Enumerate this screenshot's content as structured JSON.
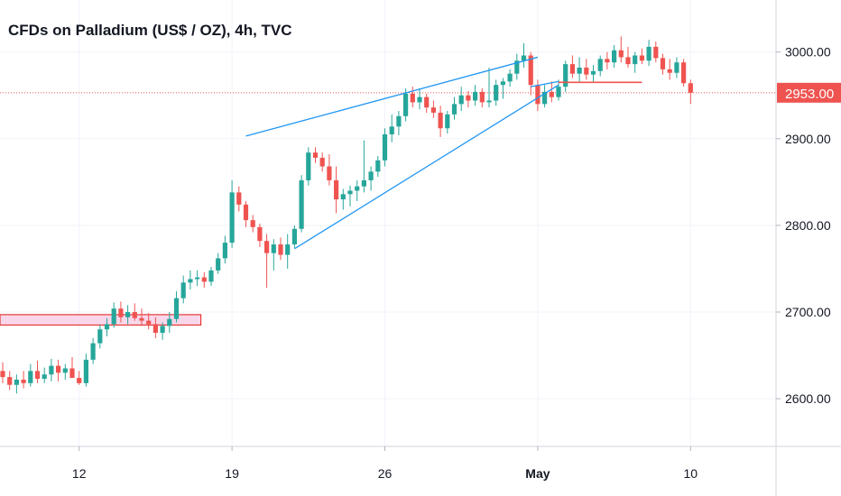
{
  "chart_data": {
    "type": "candlestick",
    "title": "CFDs on Palladium (US$ / OZ), 4h, TVC",
    "timeframe": "4h",
    "ylim": [
      2545,
      3060
    ],
    "y_ticks": [
      2600,
      2700,
      2800,
      2900,
      3000
    ],
    "y_tick_labels": [
      "2600.00",
      "2700.00",
      "2800.00",
      "2900.00",
      "3000.00"
    ],
    "x_ticks": [
      {
        "label": "12",
        "bar": 11
      },
      {
        "label": "19",
        "bar": 33
      },
      {
        "label": "26",
        "bar": 55
      },
      {
        "label": "May",
        "bar": 77,
        "bold": true
      },
      {
        "label": "10",
        "bar": 99
      }
    ],
    "last_price": 2953,
    "last_price_label": "2953.00",
    "grid": true,
    "colors": {
      "up": "#26a69a",
      "down": "#ef5350",
      "trendline": "#2196f3",
      "zone_fill": "#f8d7ea",
      "zone_border": "#e53935",
      "grid": "#f0f3fa",
      "axis_text": "#131722",
      "price_label_bg": "#ef5350"
    },
    "candles": [
      [
        2632,
        2642,
        2618,
        2625
      ],
      [
        2625,
        2632,
        2610,
        2616
      ],
      [
        2616,
        2628,
        2606,
        2622
      ],
      [
        2622,
        2632,
        2612,
        2618
      ],
      [
        2618,
        2640,
        2614,
        2632
      ],
      [
        2632,
        2644,
        2618,
        2623
      ],
      [
        2623,
        2636,
        2618,
        2628
      ],
      [
        2628,
        2646,
        2620,
        2638
      ],
      [
        2638,
        2645,
        2620,
        2630
      ],
      [
        2630,
        2640,
        2622,
        2635
      ],
      [
        2635,
        2648,
        2626,
        2624
      ],
      [
        2624,
        2632,
        2616,
        2618
      ],
      [
        2618,
        2652,
        2614,
        2645
      ],
      [
        2645,
        2670,
        2640,
        2664
      ],
      [
        2664,
        2685,
        2658,
        2680
      ],
      [
        2680,
        2693,
        2672,
        2686
      ],
      [
        2686,
        2711,
        2682,
        2704
      ],
      [
        2704,
        2712,
        2688,
        2694
      ],
      [
        2694,
        2708,
        2686,
        2700
      ],
      [
        2700,
        2710,
        2690,
        2693
      ],
      [
        2693,
        2704,
        2684,
        2690
      ],
      [
        2690,
        2699,
        2680,
        2686
      ],
      [
        2686,
        2694,
        2670,
        2676
      ],
      [
        2676,
        2688,
        2668,
        2684
      ],
      [
        2684,
        2700,
        2676,
        2692
      ],
      [
        2692,
        2724,
        2688,
        2716
      ],
      [
        2716,
        2742,
        2710,
        2734
      ],
      [
        2734,
        2748,
        2726,
        2738
      ],
      [
        2738,
        2748,
        2730,
        2740
      ],
      [
        2740,
        2746,
        2728,
        2735
      ],
      [
        2735,
        2752,
        2730,
        2748
      ],
      [
        2748,
        2768,
        2744,
        2762
      ],
      [
        2762,
        2788,
        2756,
        2780
      ],
      [
        2780,
        2852,
        2774,
        2838
      ],
      [
        2838,
        2845,
        2816,
        2824
      ],
      [
        2824,
        2828,
        2798,
        2806
      ],
      [
        2806,
        2812,
        2792,
        2798
      ],
      [
        2798,
        2802,
        2775,
        2782
      ],
      [
        2782,
        2790,
        2728,
        2768
      ],
      [
        2768,
        2784,
        2748,
        2778
      ],
      [
        2778,
        2786,
        2760,
        2766
      ],
      [
        2766,
        2790,
        2750,
        2778
      ],
      [
        2778,
        2800,
        2774,
        2796
      ],
      [
        2796,
        2858,
        2792,
        2852
      ],
      [
        2852,
        2890,
        2846,
        2884
      ],
      [
        2884,
        2890,
        2872,
        2878
      ],
      [
        2878,
        2884,
        2862,
        2868
      ],
      [
        2868,
        2882,
        2846,
        2852
      ],
      [
        2852,
        2868,
        2814,
        2830
      ],
      [
        2830,
        2842,
        2818,
        2836
      ],
      [
        2836,
        2846,
        2822,
        2840
      ],
      [
        2840,
        2852,
        2828,
        2845
      ],
      [
        2845,
        2898,
        2838,
        2852
      ],
      [
        2852,
        2868,
        2840,
        2862
      ],
      [
        2862,
        2880,
        2856,
        2875
      ],
      [
        2875,
        2912,
        2868,
        2905
      ],
      [
        2905,
        2928,
        2896,
        2914
      ],
      [
        2914,
        2932,
        2904,
        2926
      ],
      [
        2926,
        2958,
        2920,
        2952
      ],
      [
        2952,
        2960,
        2936,
        2942
      ],
      [
        2942,
        2958,
        2934,
        2948
      ],
      [
        2948,
        2952,
        2930,
        2936
      ],
      [
        2936,
        2944,
        2924,
        2930
      ],
      [
        2930,
        2938,
        2902,
        2912
      ],
      [
        2912,
        2932,
        2906,
        2928
      ],
      [
        2928,
        2948,
        2922,
        2940
      ],
      [
        2940,
        2960,
        2932,
        2950
      ],
      [
        2950,
        2955,
        2936,
        2944
      ],
      [
        2944,
        2962,
        2938,
        2954
      ],
      [
        2954,
        2958,
        2936,
        2942
      ],
      [
        2942,
        2982,
        2936,
        2944
      ],
      [
        2944,
        2968,
        2938,
        2962
      ],
      [
        2962,
        2970,
        2946,
        2966
      ],
      [
        2966,
        2980,
        2960,
        2975
      ],
      [
        2975,
        2998,
        2968,
        2990
      ],
      [
        2990,
        3010,
        2982,
        2996
      ],
      [
        2996,
        3000,
        2950,
        2962
      ],
      [
        2962,
        2968,
        2932,
        2940
      ],
      [
        2940,
        2962,
        2936,
        2954
      ],
      [
        2954,
        2966,
        2942,
        2948
      ],
      [
        2948,
        2968,
        2944,
        2960
      ],
      [
        2960,
        2990,
        2954,
        2986
      ],
      [
        2986,
        2996,
        2970,
        2975
      ],
      [
        2975,
        2994,
        2966,
        2982
      ],
      [
        2982,
        2992,
        2968,
        2974
      ],
      [
        2974,
        2985,
        2966,
        2978
      ],
      [
        2978,
        2996,
        2972,
        2992
      ],
      [
        2992,
        3000,
        2980,
        2988
      ],
      [
        2988,
        3008,
        2982,
        3002
      ],
      [
        3002,
        3018,
        2988,
        2994
      ],
      [
        2994,
        3006,
        2982,
        2986
      ],
      [
        2986,
        3000,
        2976,
        2996
      ],
      [
        2996,
        3004,
        2986,
        2990
      ],
      [
        2990,
        3014,
        2984,
        3006
      ],
      [
        3006,
        3012,
        2988,
        2993
      ],
      [
        2993,
        2998,
        2974,
        2980
      ],
      [
        2980,
        2992,
        2968,
        2976
      ],
      [
        2976,
        2994,
        2970,
        2988
      ],
      [
        2988,
        2992,
        2960,
        2964
      ],
      [
        2964,
        2968,
        2940,
        2953
      ]
    ],
    "annotations": [
      {
        "type": "trendline",
        "from": {
          "bar": 35,
          "price": 2903
        },
        "to": {
          "bar": 77,
          "price": 2994
        }
      },
      {
        "type": "trendline",
        "from": {
          "bar": 42,
          "price": 2773
        },
        "to": {
          "bar": 80,
          "price": 2962
        }
      },
      {
        "type": "trendline",
        "from": {
          "bar": 76,
          "price": 2960
        },
        "to": {
          "bar": 80,
          "price": 2966
        }
      },
      {
        "type": "hline",
        "from": {
          "bar": 80
        },
        "to": {
          "bar": 92
        },
        "price": 2965
      },
      {
        "type": "zone",
        "from": {
          "bar": -1
        },
        "to": {
          "bar": 28
        },
        "low": 2685,
        "high": 2697
      }
    ]
  }
}
